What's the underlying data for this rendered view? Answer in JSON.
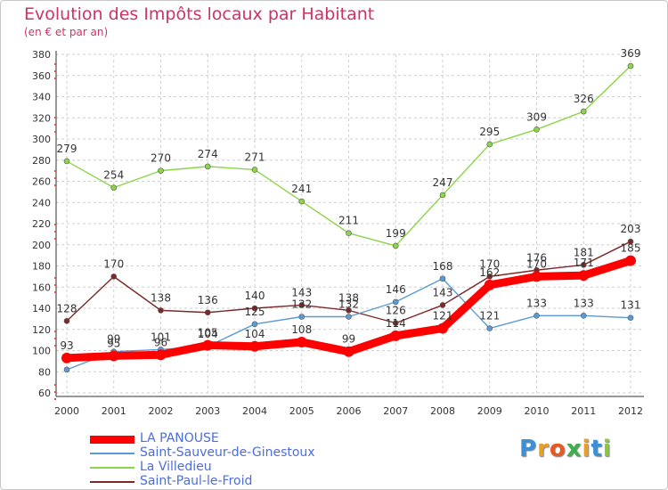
{
  "title": "Evolution des Impôts locaux par Habitant",
  "subtitle": "(en € et par an)",
  "logo": {
    "letters": [
      "P",
      "r",
      "o",
      "x",
      "i",
      "t",
      "i"
    ],
    "colors": [
      "#3d8fd8",
      "#e6a024",
      "#e65a24",
      "#3db04a",
      "#e6a024",
      "#3d8fd8",
      "#8dc63f"
    ]
  },
  "chart_data": {
    "type": "line",
    "x": [
      "2000",
      "2001",
      "2002",
      "2003",
      "2004",
      "2005",
      "2006",
      "2007",
      "2008",
      "2009",
      "2010",
      "2011",
      "2012"
    ],
    "ylim": [
      60,
      380
    ],
    "yticks": [
      60,
      80,
      100,
      120,
      140,
      160,
      180,
      200,
      220,
      240,
      260,
      280,
      300,
      320,
      340,
      360,
      380
    ],
    "grid": true,
    "legend_position": "bottom",
    "series": [
      {
        "name": "LA PANOUSE",
        "color": "#ff0000",
        "values": [
          93,
          95,
          96,
          105,
          104,
          108,
          99,
          114,
          121,
          162,
          170,
          171,
          185
        ],
        "labels": [
          "93",
          "95",
          "96",
          "105",
          "104",
          "108",
          "99",
          "114",
          "121",
          "162",
          "170",
          "171",
          "185"
        ]
      },
      {
        "name": "Saint-Sauveur-de-Ginestoux",
        "color": "#5b9bd5",
        "values": [
          82,
          99,
          101,
          104,
          125,
          132,
          132,
          146,
          168,
          121,
          133,
          133,
          131
        ],
        "labels": [
          "",
          "99",
          "101",
          "104",
          "125",
          "132",
          "132",
          "146",
          "168",
          "121",
          "133",
          "133",
          "131"
        ]
      },
      {
        "name": "La Villedieu",
        "color": "#8cd449",
        "values": [
          279,
          254,
          270,
          274,
          271,
          241,
          211,
          199,
          247,
          295,
          309,
          326,
          369
        ],
        "labels": [
          "279",
          "254",
          "270",
          "274",
          "271",
          "241",
          "211",
          "199",
          "247",
          "295",
          "309",
          "326",
          "369"
        ]
      },
      {
        "name": "Saint-Paul-le-Froid",
        "color": "#7b2a2a",
        "values": [
          128,
          170,
          138,
          136,
          140,
          143,
          138,
          126,
          143,
          170,
          176,
          181,
          203
        ],
        "labels": [
          "128",
          "170",
          "138",
          "136",
          "140",
          "143",
          "138",
          "126",
          "143",
          "170",
          "176",
          "181",
          "203"
        ]
      }
    ]
  }
}
